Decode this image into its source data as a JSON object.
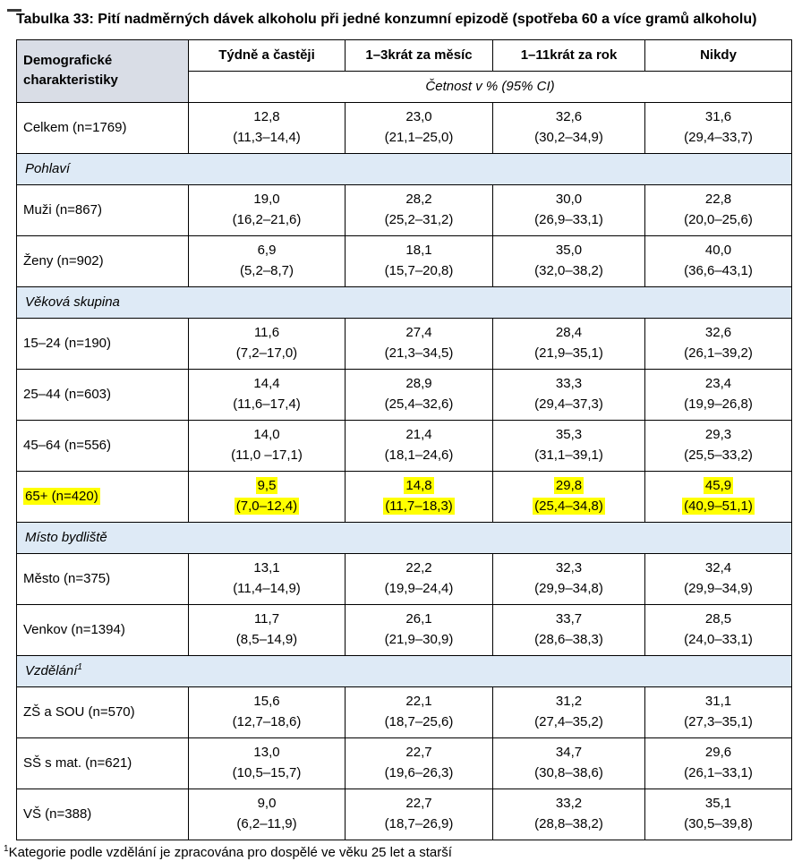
{
  "title": "Tabulka 33: Pití nadměrných dávek alkoholu při jedné konzumní epizodě (spotřeba 60 a více gramů alkoholu)",
  "colors": {
    "header_bg": "#d9dde6",
    "section_bg": "#deeaf6",
    "highlight": "#ffff00",
    "border": "#000000"
  },
  "table": {
    "header": {
      "col0": "Demografické charakteristiky",
      "columns": [
        "Týdně a častěji",
        "1–3krát za měsíc",
        "1–11krát za rok",
        "Nikdy"
      ],
      "subheader": "Četnost v % (95% CI)"
    },
    "rows": [
      {
        "type": "data",
        "label": "Celkem (n=1769)",
        "values": [
          [
            "12,8",
            "(11,3–14,4)"
          ],
          [
            "23,0",
            "(21,1–25,0)"
          ],
          [
            "32,6",
            "(30,2–34,9)"
          ],
          [
            "31,6",
            "(29,4–33,7)"
          ]
        ]
      },
      {
        "type": "section",
        "label": "Pohlaví"
      },
      {
        "type": "data",
        "label": "Muži (n=867)",
        "values": [
          [
            "19,0",
            "(16,2–21,6)"
          ],
          [
            "28,2",
            "(25,2–31,2)"
          ],
          [
            "30,0",
            "(26,9–33,1)"
          ],
          [
            "22,8",
            "(20,0–25,6)"
          ]
        ]
      },
      {
        "type": "data",
        "label": "Ženy (n=902)",
        "values": [
          [
            "6,9",
            "(5,2–8,7)"
          ],
          [
            "18,1",
            "(15,7–20,8)"
          ],
          [
            "35,0",
            "(32,0–38,2)"
          ],
          [
            "40,0",
            "(36,6–43,1)"
          ]
        ]
      },
      {
        "type": "section",
        "label": "Věková skupina"
      },
      {
        "type": "data",
        "label": "15–24 (n=190)",
        "values": [
          [
            "11,6",
            "(7,2–17,0)"
          ],
          [
            "27,4",
            "(21,3–34,5)"
          ],
          [
            "28,4",
            "(21,9–35,1)"
          ],
          [
            "32,6",
            "(26,1–39,2)"
          ]
        ]
      },
      {
        "type": "data",
        "label": "25–44 (n=603)",
        "values": [
          [
            "14,4",
            "(11,6–17,4)"
          ],
          [
            "28,9",
            "(25,4–32,6)"
          ],
          [
            "33,3",
            "(29,4–37,3)"
          ],
          [
            "23,4",
            "(19,9–26,8)"
          ]
        ]
      },
      {
        "type": "data",
        "label": "45–64 (n=556)",
        "values": [
          [
            "14,0",
            "(11,0 –17,1)"
          ],
          [
            "21,4",
            "(18,1–24,6)"
          ],
          [
            "35,3",
            "(31,1–39,1)"
          ],
          [
            "29,3",
            "(25,5–33,2)"
          ]
        ]
      },
      {
        "type": "data",
        "label": "65+ (n=420)",
        "highlight": true,
        "values": [
          [
            "9,5",
            "(7,0–12,4)"
          ],
          [
            "14,8",
            "(11,7–18,3)"
          ],
          [
            "29,8",
            "(25,4–34,8)"
          ],
          [
            "45,9",
            "(40,9–51,1)"
          ]
        ]
      },
      {
        "type": "section",
        "label": "Místo bydliště"
      },
      {
        "type": "data",
        "label": "Město (n=375)",
        "values": [
          [
            "13,1",
            "(11,4–14,9)"
          ],
          [
            "22,2",
            "(19,9–24,4)"
          ],
          [
            "32,3",
            "(29,9–34,8)"
          ],
          [
            "32,4",
            "(29,9–34,9)"
          ]
        ]
      },
      {
        "type": "data",
        "label": "Venkov (n=1394)",
        "values": [
          [
            "11,7",
            "(8,5–14,9)"
          ],
          [
            "26,1",
            "(21,9–30,9)"
          ],
          [
            "33,7",
            "(28,6–38,3)"
          ],
          [
            "28,5",
            "(24,0–33,1)"
          ]
        ]
      },
      {
        "type": "section",
        "label": "Vzdělání",
        "sup": "1"
      },
      {
        "type": "data",
        "label": "ZŠ a SOU (n=570)",
        "values": [
          [
            "15,6",
            "(12,7–18,6)"
          ],
          [
            "22,1",
            "(18,7–25,6)"
          ],
          [
            "31,2",
            "(27,4–35,2)"
          ],
          [
            "31,1",
            "(27,3–35,1)"
          ]
        ]
      },
      {
        "type": "data",
        "label": "SŠ s mat. (n=621)",
        "values": [
          [
            "13,0",
            "(10,5–15,7)"
          ],
          [
            "22,7",
            "(19,6–26,3)"
          ],
          [
            "34,7",
            "(30,8–38,6)"
          ],
          [
            "29,6",
            "(26,1–33,1)"
          ]
        ]
      },
      {
        "type": "data",
        "label": "VŠ (n=388)",
        "values": [
          [
            "9,0",
            "(6,2–11,9)"
          ],
          [
            "22,7",
            "(18,7–26,9)"
          ],
          [
            "33,2",
            "(28,8–38,2)"
          ],
          [
            "35,1",
            "(30,5–39,8)"
          ]
        ]
      }
    ],
    "footnote": {
      "sup": "1",
      "text": "Kategorie podle vzdělání je zpracována pro dospělé ve věku 25 let a starší"
    }
  }
}
